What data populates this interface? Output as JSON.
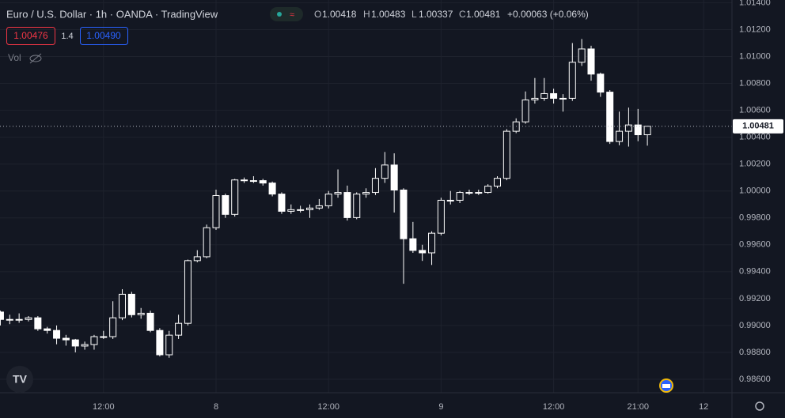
{
  "header": {
    "title": "Euro / U.S. Dollar · 1h · OANDA · TradingView",
    "open_label": "O",
    "high_label": "H",
    "low_label": "L",
    "close_label": "C",
    "change": "+0.00063 (+0.06%)",
    "bid": "1.00476",
    "spread": "1.4",
    "ask": "1.00490",
    "volume_label": "Vol"
  },
  "chart_data": {
    "type": "candlestick",
    "categories": [
      null,
      null,
      null,
      null,
      null,
      null,
      null,
      null,
      null,
      null,
      null,
      "12:00",
      null,
      null,
      null,
      null,
      null,
      null,
      null,
      null,
      null,
      null,
      null,
      "8",
      null,
      null,
      null,
      null,
      null,
      null,
      null,
      null,
      null,
      null,
      null,
      "12:00",
      null,
      null,
      null,
      null,
      null,
      null,
      null,
      null,
      null,
      null,
      null,
      "9",
      null,
      null,
      null,
      null,
      null,
      null,
      null,
      null,
      null,
      null,
      null,
      "12:00",
      null,
      null,
      null,
      null,
      null,
      null,
      null,
      null,
      "21:00",
      null,
      null,
      null,
      null,
      null,
      null,
      "12",
      null,
      null
    ],
    "open": [
      0.991,
      0.99045,
      0.99045,
      0.99045,
      0.99057,
      0.98975,
      0.98963,
      0.98905,
      0.98893,
      0.98847,
      0.98858,
      0.98917,
      0.98917,
      0.99057,
      0.99232,
      0.9908,
      0.99091,
      0.98963,
      0.98782,
      0.98928,
      0.99016,
      0.99482,
      0.99511,
      0.99727,
      0.99966,
      0.99826,
      1.00082,
      1.00077,
      1.00077,
      1.00059,
      0.99977,
      0.99849,
      0.99861,
      0.99861,
      0.99873,
      0.9989,
      0.99977,
      0.99989,
      0.99802,
      0.99977,
      0.99989,
      1.00094,
      1.00193,
      1.00007,
      0.99645,
      0.99558,
      0.9954,
      0.99686,
      0.99931,
      0.99931,
      0.99989,
      0.99989,
      0.99989,
      1.00036,
      1.00094,
      1.00444,
      1.00514,
      1.00677,
      1.00689,
      1.00724,
      1.00689,
      1.00689,
      1.00957,
      1.01056,
      1.00869,
      1.00735,
      1.00368,
      1.00444,
      1.00491,
      1.00418,
      null,
      null,
      null,
      null,
      null,
      null,
      null,
      null
    ],
    "high": [
      0.9911,
      0.9908,
      0.9909,
      0.9907,
      0.9907,
      0.9899,
      0.99,
      0.9893,
      0.989,
      0.9888,
      0.9893,
      0.9896,
      0.9918,
      0.9927,
      0.9925,
      0.9913,
      0.9911,
      0.9898,
      0.9896,
      0.9908,
      0.9949,
      0.9956,
      0.9975,
      1.0001,
      0.9998,
      1.0009,
      1.001,
      1.0011,
      1.0009,
      1.0007,
      0.9999,
      0.999,
      0.9989,
      0.999,
      0.9994,
      1.0,
      1.0016,
      1.0004,
      0.9999,
      1.0002,
      1.0017,
      1.0029,
      1.0028,
      1.0002,
      0.9977,
      0.996,
      0.997,
      0.9995,
      1.0,
      1.0,
      1.0001,
      1.0001,
      1.0005,
      1.0011,
      1.0046,
      1.0054,
      1.0074,
      1.0084,
      1.0084,
      1.0076,
      1.0072,
      1.011,
      1.0113,
      1.0108,
      1.0088,
      1.0075,
      1.0059,
      1.0062,
      1.0061,
      1.00483,
      null,
      null,
      null,
      null,
      null,
      null,
      null,
      null
    ],
    "low": [
      0.99,
      0.9901,
      0.9902,
      0.9903,
      0.9896,
      0.9894,
      0.9886,
      0.9885,
      0.988,
      0.9882,
      0.9882,
      0.989,
      0.989,
      0.9904,
      0.9906,
      0.9905,
      0.9895,
      0.9877,
      0.9876,
      0.989,
      0.99,
      0.9947,
      0.995,
      0.9971,
      0.998,
      0.9981,
      1.0006,
      1.0006,
      1.0004,
      0.9996,
      0.9983,
      0.9983,
      0.9984,
      0.998,
      0.9986,
      0.9987,
      0.9995,
      0.9978,
      0.9979,
      0.9995,
      0.9997,
      1.0006,
      0.9984,
      0.9931,
      0.9954,
      0.9948,
      0.9945,
      0.9967,
      0.999,
      0.9991,
      0.9997,
      0.9997,
      0.9998,
      1.0002,
      1.0008,
      1.0043,
      1.005,
      1.0065,
      1.0067,
      1.0065,
      1.0059,
      1.0067,
      1.0093,
      1.0082,
      1.007,
      1.0035,
      1.0034,
      1.0033,
      1.0037,
      1.00337,
      null,
      null,
      null,
      null,
      null,
      null,
      null,
      null
    ],
    "close": [
      0.99045,
      0.99045,
      0.99045,
      0.99057,
      0.98975,
      0.98963,
      0.98905,
      0.98893,
      0.98847,
      0.98858,
      0.98917,
      0.98917,
      0.99057,
      0.99232,
      0.9908,
      0.99091,
      0.98963,
      0.98782,
      0.98928,
      0.99016,
      0.99482,
      0.99511,
      0.99727,
      0.99966,
      0.99826,
      1.00082,
      1.00077,
      1.00077,
      1.00059,
      0.99977,
      0.99849,
      0.99861,
      0.99861,
      0.99873,
      0.9989,
      0.99977,
      0.99989,
      0.99802,
      0.99977,
      0.99989,
      1.00094,
      1.00193,
      1.00007,
      0.99645,
      0.99558,
      0.9954,
      0.99686,
      0.99931,
      0.99931,
      0.99989,
      0.99989,
      0.99989,
      1.00036,
      1.00094,
      1.00444,
      1.00514,
      1.00677,
      1.00689,
      1.00724,
      1.00689,
      1.00689,
      1.00957,
      1.01056,
      1.00869,
      1.00735,
      1.00368,
      1.00444,
      1.00491,
      1.00418,
      1.00481,
      null,
      null,
      null,
      null,
      null,
      null,
      null,
      null
    ],
    "up_color": "#131722",
    "down_color": "#ffffff",
    "wick_color": "#ffffff",
    "ylim": [
      0.985,
      1.0142
    ],
    "yticks": [
      {
        "value": 0.986,
        "label": "0.98600"
      },
      {
        "value": 0.988,
        "label": "0.98800"
      },
      {
        "value": 0.99,
        "label": "0.99000"
      },
      {
        "value": 0.992,
        "label": "0.99200"
      },
      {
        "value": 0.994,
        "label": "0.99400"
      },
      {
        "value": 0.996,
        "label": "0.99600"
      },
      {
        "value": 0.998,
        "label": "0.99800"
      },
      {
        "value": 1.0,
        "label": "1.00000"
      },
      {
        "value": 1.002,
        "label": "1.00200"
      },
      {
        "value": 1.004,
        "label": "1.00400"
      },
      {
        "value": 1.006,
        "label": "1.00600"
      },
      {
        "value": 1.008,
        "label": "1.00800"
      },
      {
        "value": 1.01,
        "label": "1.01000"
      },
      {
        "value": 1.012,
        "label": "1.01200"
      },
      {
        "value": 1.014,
        "label": "1.01400"
      }
    ],
    "grid": true
  }
}
